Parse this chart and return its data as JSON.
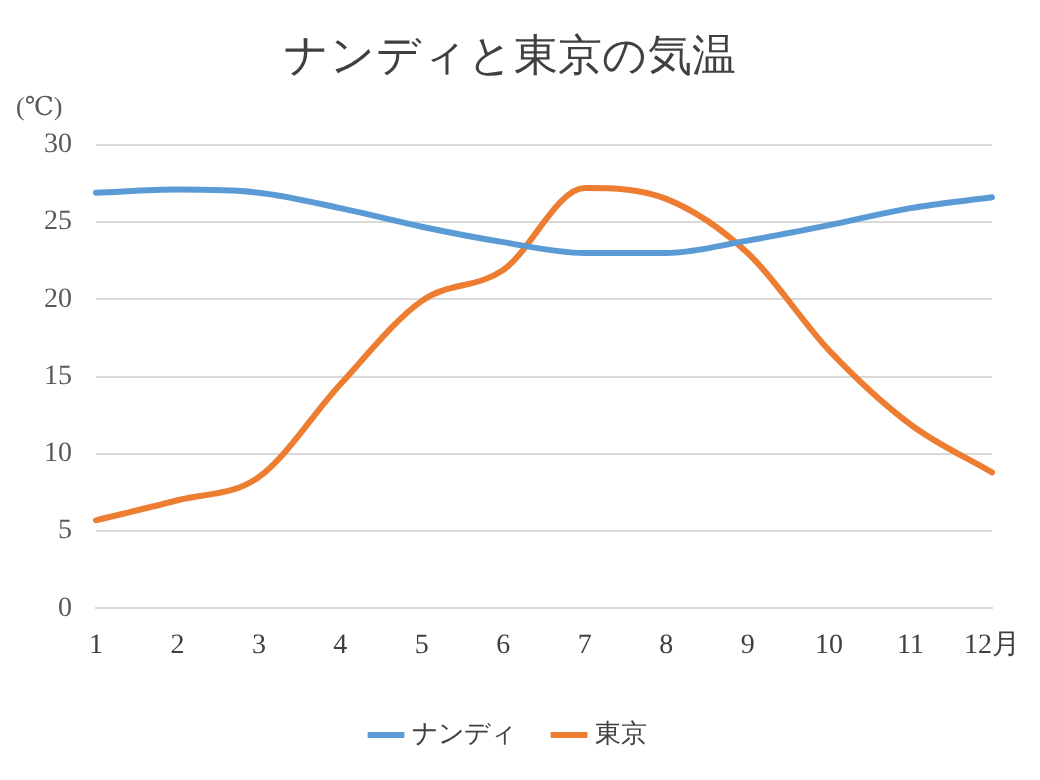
{
  "chart_data": {
    "type": "line",
    "title": "ナンディと東京の気温",
    "ylabel": "(℃)",
    "categories": [
      "1",
      "2",
      "3",
      "4",
      "5",
      "6",
      "7",
      "8",
      "9",
      "10",
      "11",
      "12月"
    ],
    "series": [
      {
        "name": "ナンディ",
        "color": "#5b9bd5",
        "values": [
          26.9,
          27.1,
          26.9,
          25.9,
          24.7,
          23.7,
          23.0,
          23.0,
          23.8,
          24.8,
          25.9,
          26.6
        ]
      },
      {
        "name": "東京",
        "color": "#ed7d31",
        "values": [
          5.7,
          7.0,
          8.5,
          14.5,
          19.9,
          21.9,
          27.2,
          26.5,
          23.0,
          16.7,
          11.9,
          8.8
        ]
      }
    ],
    "ylim": [
      0,
      30
    ],
    "yticks": [
      0,
      5,
      10,
      15,
      20,
      25,
      30
    ],
    "grid": "y",
    "legend": "bottom"
  }
}
